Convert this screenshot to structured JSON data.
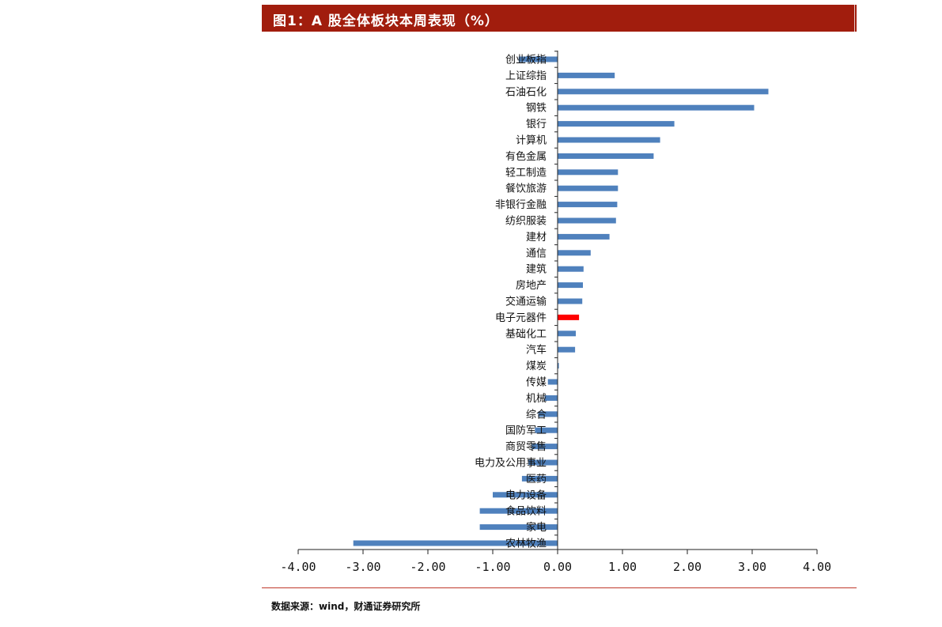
{
  "header": {
    "title": "图1：A 股全体板块本周表现（%）"
  },
  "footer": {
    "source": "数据来源：wind，财通证券研究所"
  },
  "colors": {
    "bar": "#4f81bd",
    "highlight": "#ff0000",
    "title_bg": "#a11d0d",
    "rule": "#c0392b"
  },
  "chart_data": {
    "type": "bar",
    "orientation": "horizontal",
    "title": "图1：A 股全体板块本周表现（%）",
    "xlim": [
      -4,
      4
    ],
    "x_ticks": [
      "-4.00",
      "-3.00",
      "-2.00",
      "-1.00",
      "0.00",
      "1.00",
      "2.00",
      "3.00",
      "4.00"
    ],
    "x_tick_values": [
      -4,
      -3,
      -2,
      -1,
      0,
      1,
      2,
      3,
      4
    ],
    "grid": false,
    "highlight_category": "电子元器件",
    "categories": [
      "创业板指",
      "上证综指",
      "石油石化",
      "钢铁",
      "银行",
      "计算机",
      "有色金属",
      "轻工制造",
      "餐饮旅游",
      "非银行金融",
      "纺织服装",
      "建材",
      "通信",
      "建筑",
      "房地产",
      "交通运输",
      "电子元器件",
      "基础化工",
      "汽车",
      "煤炭",
      "传媒",
      "机械",
      "综合",
      "国防军工",
      "商贸零售",
      "电力及公用事业",
      "医药",
      "电力设备",
      "食品饮料",
      "家电",
      "农林牧渔"
    ],
    "values": [
      -0.6,
      0.88,
      3.25,
      3.03,
      1.8,
      1.58,
      1.48,
      0.93,
      0.93,
      0.92,
      0.9,
      0.8,
      0.51,
      0.4,
      0.39,
      0.38,
      0.33,
      0.28,
      0.27,
      0.02,
      -0.15,
      -0.2,
      -0.3,
      -0.35,
      -0.4,
      -0.45,
      -0.55,
      -1.0,
      -1.2,
      -1.2,
      -3.15
    ]
  }
}
